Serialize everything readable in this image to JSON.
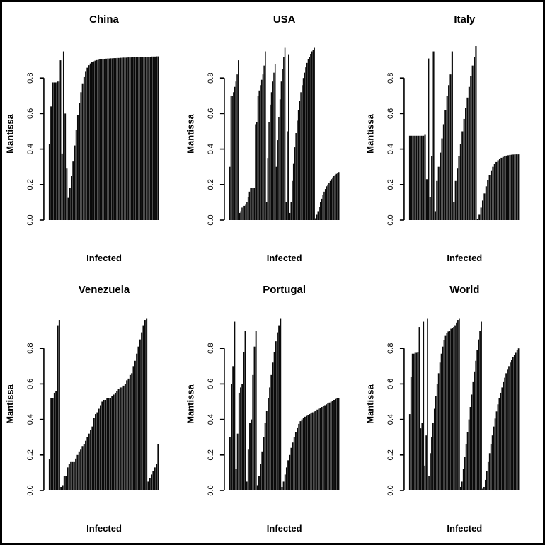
{
  "style": {
    "bar_color": "#0a0a0a",
    "text_color": "#000000",
    "background": "#ffffff",
    "frame_color": "#000000"
  },
  "chart_data": [
    {
      "type": "bar",
      "title": "China",
      "xlabel": "Infected",
      "ylabel": "Mantissa",
      "ylim": [
        0,
        1
      ],
      "yticks": [
        "0.0",
        "0.2",
        "0.4",
        "0.6",
        "0.8"
      ],
      "grid": false,
      "legend": "none",
      "values": [
        0.43,
        0.64,
        0.775,
        0.775,
        0.775,
        0.78,
        0.78,
        0.9,
        0.375,
        0.95,
        0.6,
        0.29,
        0.125,
        0.18,
        0.25,
        0.33,
        0.42,
        0.51,
        0.59,
        0.66,
        0.72,
        0.77,
        0.805,
        0.835,
        0.858,
        0.872,
        0.882,
        0.889,
        0.894,
        0.898,
        0.901,
        0.903,
        0.905,
        0.906,
        0.907,
        0.908,
        0.909,
        0.91,
        0.91,
        0.911,
        0.911,
        0.912,
        0.912,
        0.913,
        0.913,
        0.914,
        0.914,
        0.915,
        0.915,
        0.915,
        0.916,
        0.916,
        0.916,
        0.917,
        0.917,
        0.917,
        0.918,
        0.918,
        0.918,
        0.919,
        0.919,
        0.919,
        0.92,
        0.92,
        0.92,
        0.921,
        0.921,
        0.921,
        0.922,
        0.922
      ]
    },
    {
      "type": "bar",
      "title": "USA",
      "xlabel": "Infected",
      "ylabel": "Mantissa",
      "ylim": [
        0,
        1
      ],
      "yticks": [
        "0.0",
        "0.2",
        "0.4",
        "0.6",
        "0.8"
      ],
      "grid": false,
      "legend": "none",
      "values": [
        0.3,
        0.7,
        0.7,
        0.72,
        0.75,
        0.78,
        0.82,
        0.9,
        0.04,
        0.05,
        0.07,
        0.08,
        0.08,
        0.09,
        0.1,
        0.13,
        0.16,
        0.18,
        0.18,
        0.18,
        0.18,
        0.54,
        0.55,
        0.7,
        0.73,
        0.76,
        0.79,
        0.82,
        0.87,
        0.95,
        0.1,
        0.35,
        0.55,
        0.65,
        0.72,
        0.78,
        0.83,
        0.88,
        0.3,
        0.45,
        0.58,
        0.68,
        0.78,
        0.85,
        0.92,
        0.97,
        0.1,
        0.5,
        0.93,
        0.04,
        0.1,
        0.22,
        0.32,
        0.41,
        0.49,
        0.56,
        0.62,
        0.67,
        0.72,
        0.76,
        0.8,
        0.83,
        0.86,
        0.885,
        0.905,
        0.92,
        0.935,
        0.95,
        0.96,
        0.97,
        0.01,
        0.03,
        0.05,
        0.075,
        0.1,
        0.12,
        0.14,
        0.16,
        0.175,
        0.19,
        0.2,
        0.21,
        0.22,
        0.23,
        0.24,
        0.25,
        0.255,
        0.26,
        0.265,
        0.27
      ]
    },
    {
      "type": "bar",
      "title": "Italy",
      "xlabel": "Infected",
      "ylabel": "Mantissa",
      "ylim": [
        0,
        1
      ],
      "yticks": [
        "0.0",
        "0.2",
        "0.4",
        "0.6",
        "0.8"
      ],
      "grid": false,
      "legend": "none",
      "values": [
        0.475,
        0.475,
        0.475,
        0.475,
        0.475,
        0.475,
        0.475,
        0.475,
        0.475,
        0.48,
        0.23,
        0.91,
        0.13,
        0.36,
        0.95,
        0.05,
        0.22,
        0.3,
        0.38,
        0.46,
        0.54,
        0.62,
        0.7,
        0.76,
        0.82,
        0.95,
        0.1,
        0.22,
        0.29,
        0.36,
        0.43,
        0.5,
        0.57,
        0.63,
        0.69,
        0.75,
        0.81,
        0.87,
        0.92,
        0.98,
        0.005,
        0.03,
        0.07,
        0.11,
        0.15,
        0.19,
        0.225,
        0.255,
        0.28,
        0.3,
        0.315,
        0.327,
        0.337,
        0.345,
        0.351,
        0.356,
        0.36,
        0.363,
        0.365,
        0.367,
        0.368,
        0.369,
        0.37,
        0.37,
        0.37
      ]
    },
    {
      "type": "bar",
      "title": "Venezuela",
      "xlabel": "Infected",
      "ylabel": "Mantissa",
      "ylim": [
        0,
        1
      ],
      "yticks": [
        "0.0",
        "0.2",
        "0.4",
        "0.6",
        "0.8"
      ],
      "grid": false,
      "legend": "none",
      "values": [
        0.175,
        0.52,
        0.52,
        0.55,
        0.56,
        0.93,
        0.96,
        0.02,
        0.03,
        0.08,
        0.08,
        0.13,
        0.15,
        0.16,
        0.16,
        0.16,
        0.18,
        0.2,
        0.22,
        0.23,
        0.25,
        0.26,
        0.28,
        0.3,
        0.32,
        0.34,
        0.36,
        0.41,
        0.43,
        0.44,
        0.46,
        0.48,
        0.5,
        0.51,
        0.51,
        0.52,
        0.52,
        0.52,
        0.53,
        0.54,
        0.55,
        0.56,
        0.57,
        0.58,
        0.58,
        0.59,
        0.6,
        0.62,
        0.63,
        0.65,
        0.66,
        0.7,
        0.73,
        0.77,
        0.81,
        0.85,
        0.89,
        0.93,
        0.96,
        0.97,
        0.05,
        0.07,
        0.09,
        0.11,
        0.13,
        0.15,
        0.26
      ]
    },
    {
      "type": "bar",
      "title": "Portugal",
      "xlabel": "Infected",
      "ylabel": "Mantissa",
      "ylim": [
        0,
        1
      ],
      "yticks": [
        "0.0",
        "0.2",
        "0.4",
        "0.6",
        "0.8"
      ],
      "grid": false,
      "legend": "none",
      "values": [
        0.3,
        0.6,
        0.7,
        0.95,
        0.12,
        0.32,
        0.55,
        0.58,
        0.6,
        0.78,
        0.9,
        0.05,
        0.23,
        0.38,
        0.4,
        0.65,
        0.81,
        0.9,
        0.03,
        0.08,
        0.15,
        0.22,
        0.3,
        0.38,
        0.45,
        0.52,
        0.58,
        0.65,
        0.72,
        0.78,
        0.84,
        0.89,
        0.93,
        0.97,
        0.02,
        0.05,
        0.09,
        0.13,
        0.17,
        0.2,
        0.24,
        0.27,
        0.3,
        0.33,
        0.355,
        0.375,
        0.39,
        0.4,
        0.41,
        0.415,
        0.42,
        0.425,
        0.43,
        0.435,
        0.44,
        0.445,
        0.45,
        0.455,
        0.46,
        0.465,
        0.47,
        0.475,
        0.48,
        0.485,
        0.49,
        0.495,
        0.5,
        0.505,
        0.51,
        0.515,
        0.52,
        0.52
      ]
    },
    {
      "type": "bar",
      "title": "World",
      "xlabel": "Infected",
      "ylabel": "Mantissa",
      "ylim": [
        0,
        1
      ],
      "yticks": [
        "0.0",
        "0.2",
        "0.4",
        "0.6",
        "0.8"
      ],
      "grid": false,
      "legend": "none",
      "values": [
        0.43,
        0.64,
        0.77,
        0.77,
        0.775,
        0.775,
        0.78,
        0.92,
        0.35,
        0.38,
        0.95,
        0.14,
        0.31,
        0.97,
        0.08,
        0.21,
        0.3,
        0.38,
        0.46,
        0.53,
        0.6,
        0.66,
        0.72,
        0.77,
        0.81,
        0.845,
        0.87,
        0.885,
        0.895,
        0.9,
        0.91,
        0.915,
        0.92,
        0.93,
        0.945,
        0.96,
        0.97,
        0.02,
        0.05,
        0.12,
        0.19,
        0.26,
        0.33,
        0.4,
        0.47,
        0.54,
        0.61,
        0.67,
        0.73,
        0.79,
        0.85,
        0.9,
        0.95,
        0.01,
        0.02,
        0.06,
        0.11,
        0.16,
        0.21,
        0.26,
        0.31,
        0.36,
        0.405,
        0.445,
        0.485,
        0.52,
        0.55,
        0.58,
        0.61,
        0.635,
        0.66,
        0.68,
        0.7,
        0.72,
        0.735,
        0.75,
        0.765,
        0.775,
        0.79,
        0.8
      ]
    }
  ]
}
